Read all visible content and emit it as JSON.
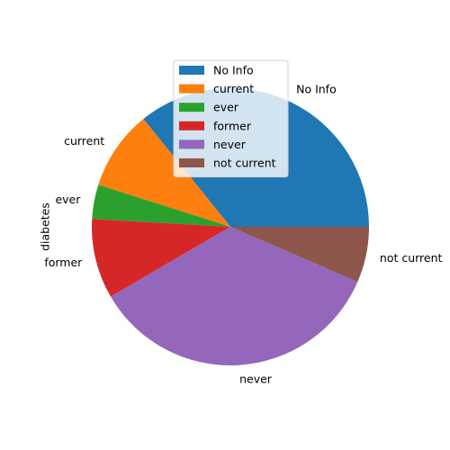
{
  "chart_data": {
    "type": "pie",
    "ylabel": "diabetes",
    "categories": [
      "No Info",
      "current",
      "ever",
      "former",
      "never",
      "not current"
    ],
    "values": [
      35.8,
      9.3,
      4.0,
      9.3,
      35.1,
      6.5
    ],
    "colors": [
      "#1f77b4",
      "#ff7f0e",
      "#2ca02c",
      "#d62728",
      "#9467bd",
      "#8c564b"
    ],
    "start_angle_deg": 0,
    "direction": "counterclockwise",
    "legend": {
      "placement": "upper-center",
      "entries": [
        "No Info",
        "current",
        "ever",
        "former",
        "never",
        "not current"
      ]
    }
  }
}
